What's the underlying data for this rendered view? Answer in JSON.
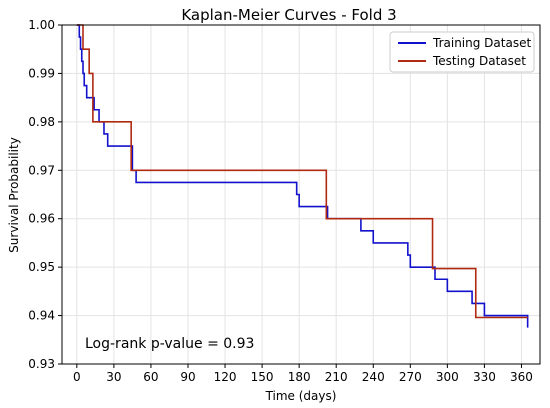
{
  "chart_data": {
    "type": "line",
    "title": "Kaplan-Meier Curves - Fold 3",
    "xlabel": "Time (days)",
    "ylabel": "Survival Probability",
    "xlim": [
      -12,
      375
    ],
    "ylim": [
      0.93,
      1.0
    ],
    "xticks": [
      0,
      30,
      60,
      90,
      120,
      150,
      180,
      210,
      240,
      270,
      300,
      330,
      360
    ],
    "yticks": [
      0.93,
      0.94,
      0.95,
      0.96,
      0.97,
      0.98,
      0.99,
      1.0
    ],
    "xtick_labels": [
      "0",
      "30",
      "60",
      "90",
      "120",
      "150",
      "180",
      "210",
      "240",
      "270",
      "300",
      "330",
      "360"
    ],
    "ytick_labels": [
      "0.93",
      "0.94",
      "0.95",
      "0.96",
      "0.97",
      "0.98",
      "0.99",
      "1.00"
    ],
    "grid": true,
    "legend_position": "top-right",
    "annotation": "Log-rank p-value = 0.93",
    "series": [
      {
        "name": "Training Dataset",
        "color": "#1212cc",
        "step": "post",
        "x": [
          0,
          2,
          3,
          4,
          5,
          6,
          8,
          14,
          18,
          22,
          25,
          45,
          48,
          143,
          178,
          180,
          203,
          225,
          230,
          240,
          268,
          270,
          290,
          300,
          320,
          330,
          365
        ],
        "y": [
          1.0,
          0.9975,
          0.995,
          0.9925,
          0.99,
          0.9875,
          0.985,
          0.9825,
          0.98,
          0.9775,
          0.975,
          0.97,
          0.9675,
          0.9675,
          0.965,
          0.9625,
          0.96,
          0.96,
          0.9575,
          0.955,
          0.9525,
          0.95,
          0.9475,
          0.945,
          0.9425,
          0.94,
          0.9375
        ]
      },
      {
        "name": "Testing Dataset",
        "color": "#b02a10",
        "step": "post",
        "x": [
          0,
          5,
          10,
          13,
          44,
          202,
          288,
          323,
          365
        ],
        "y": [
          1.0,
          0.995,
          0.99,
          0.98,
          0.97,
          0.96,
          0.9497,
          0.9396,
          0.9396
        ]
      }
    ]
  }
}
